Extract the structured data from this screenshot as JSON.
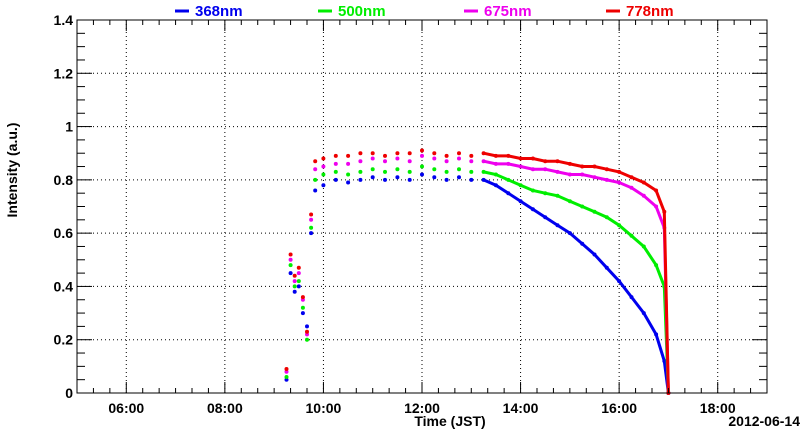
{
  "chart_data": {
    "type": "scatter",
    "title": "",
    "xlabel": "Time (JST)",
    "ylabel": "Intensity (a.u.)",
    "date_label": "2012-06-14",
    "xlim": [
      "05:00",
      "19:00"
    ],
    "ylim": [
      0,
      1.4
    ],
    "grid": true,
    "legend_position": "top",
    "x_ticks": [
      "06:00",
      "08:00",
      "10:00",
      "12:00",
      "14:00",
      "16:00",
      "18:00"
    ],
    "y_ticks": [
      "0",
      "0.2",
      "0.4",
      "0.6",
      "0.8",
      "1",
      "1.2",
      "1.4"
    ],
    "series": [
      {
        "name": "368nm",
        "color": "#0000ee",
        "points": [
          [
            "09:15",
            0.05
          ],
          [
            "09:20",
            0.45
          ],
          [
            "09:25",
            0.38
          ],
          [
            "09:30",
            0.4
          ],
          [
            "09:35",
            0.3
          ],
          [
            "09:40",
            0.25
          ],
          [
            "09:45",
            0.6
          ],
          [
            "09:50",
            0.76
          ],
          [
            "10:00",
            0.78
          ],
          [
            "10:15",
            0.8
          ],
          [
            "10:30",
            0.79
          ],
          [
            "10:45",
            0.8
          ],
          [
            "11:00",
            0.81
          ],
          [
            "11:15",
            0.8
          ],
          [
            "11:30",
            0.81
          ],
          [
            "11:45",
            0.8
          ],
          [
            "12:00",
            0.82
          ],
          [
            "12:15",
            0.81
          ],
          [
            "12:30",
            0.8
          ],
          [
            "12:45",
            0.81
          ],
          [
            "13:00",
            0.8
          ],
          [
            "13:15",
            0.8
          ],
          [
            "13:30",
            0.78
          ],
          [
            "13:45",
            0.75
          ],
          [
            "14:00",
            0.72
          ],
          [
            "14:15",
            0.69
          ],
          [
            "14:30",
            0.66
          ],
          [
            "14:45",
            0.63
          ],
          [
            "15:00",
            0.6
          ],
          [
            "15:15",
            0.56
          ],
          [
            "15:30",
            0.52
          ],
          [
            "15:45",
            0.47
          ],
          [
            "16:00",
            0.42
          ],
          [
            "16:15",
            0.36
          ],
          [
            "16:30",
            0.3
          ],
          [
            "16:45",
            0.22
          ],
          [
            "16:55",
            0.12
          ],
          [
            "17:00",
            0.0
          ]
        ]
      },
      {
        "name": "500nm",
        "color": "#00ee00",
        "points": [
          [
            "09:15",
            0.06
          ],
          [
            "09:20",
            0.48
          ],
          [
            "09:25",
            0.4
          ],
          [
            "09:30",
            0.42
          ],
          [
            "09:35",
            0.32
          ],
          [
            "09:40",
            0.2
          ],
          [
            "09:45",
            0.62
          ],
          [
            "09:50",
            0.8
          ],
          [
            "10:00",
            0.82
          ],
          [
            "10:15",
            0.83
          ],
          [
            "10:30",
            0.82
          ],
          [
            "10:45",
            0.83
          ],
          [
            "11:00",
            0.84
          ],
          [
            "11:15",
            0.83
          ],
          [
            "11:30",
            0.84
          ],
          [
            "11:45",
            0.83
          ],
          [
            "12:00",
            0.85
          ],
          [
            "12:15",
            0.84
          ],
          [
            "12:30",
            0.83
          ],
          [
            "12:45",
            0.84
          ],
          [
            "13:00",
            0.83
          ],
          [
            "13:15",
            0.83
          ],
          [
            "13:30",
            0.82
          ],
          [
            "13:45",
            0.8
          ],
          [
            "14:00",
            0.78
          ],
          [
            "14:15",
            0.76
          ],
          [
            "14:30",
            0.75
          ],
          [
            "14:45",
            0.74
          ],
          [
            "15:00",
            0.72
          ],
          [
            "15:15",
            0.7
          ],
          [
            "15:30",
            0.68
          ],
          [
            "15:45",
            0.66
          ],
          [
            "16:00",
            0.63
          ],
          [
            "16:15",
            0.59
          ],
          [
            "16:30",
            0.55
          ],
          [
            "16:45",
            0.48
          ],
          [
            "16:55",
            0.4
          ],
          [
            "17:00",
            0.0
          ]
        ]
      },
      {
        "name": "675nm",
        "color": "#ee00ee",
        "points": [
          [
            "09:15",
            0.08
          ],
          [
            "09:20",
            0.5
          ],
          [
            "09:25",
            0.42
          ],
          [
            "09:30",
            0.45
          ],
          [
            "09:35",
            0.35
          ],
          [
            "09:40",
            0.22
          ],
          [
            "09:45",
            0.65
          ],
          [
            "09:50",
            0.84
          ],
          [
            "10:00",
            0.85
          ],
          [
            "10:15",
            0.86
          ],
          [
            "10:30",
            0.86
          ],
          [
            "10:45",
            0.87
          ],
          [
            "11:00",
            0.88
          ],
          [
            "11:15",
            0.87
          ],
          [
            "11:30",
            0.88
          ],
          [
            "11:45",
            0.87
          ],
          [
            "12:00",
            0.89
          ],
          [
            "12:15",
            0.88
          ],
          [
            "12:30",
            0.87
          ],
          [
            "12:45",
            0.88
          ],
          [
            "13:00",
            0.87
          ],
          [
            "13:15",
            0.87
          ],
          [
            "13:30",
            0.86
          ],
          [
            "13:45",
            0.86
          ],
          [
            "14:00",
            0.85
          ],
          [
            "14:15",
            0.84
          ],
          [
            "14:30",
            0.84
          ],
          [
            "14:45",
            0.83
          ],
          [
            "15:00",
            0.82
          ],
          [
            "15:15",
            0.82
          ],
          [
            "15:30",
            0.81
          ],
          [
            "15:45",
            0.8
          ],
          [
            "16:00",
            0.79
          ],
          [
            "16:15",
            0.77
          ],
          [
            "16:30",
            0.74
          ],
          [
            "16:45",
            0.7
          ],
          [
            "16:55",
            0.62
          ],
          [
            "17:00",
            0.0
          ]
        ]
      },
      {
        "name": "778nm",
        "color": "#ee0000",
        "points": [
          [
            "09:15",
            0.09
          ],
          [
            "09:20",
            0.52
          ],
          [
            "09:25",
            0.44
          ],
          [
            "09:30",
            0.47
          ],
          [
            "09:35",
            0.36
          ],
          [
            "09:40",
            0.23
          ],
          [
            "09:45",
            0.67
          ],
          [
            "09:50",
            0.87
          ],
          [
            "10:00",
            0.88
          ],
          [
            "10:15",
            0.89
          ],
          [
            "10:30",
            0.89
          ],
          [
            "10:45",
            0.9
          ],
          [
            "11:00",
            0.9
          ],
          [
            "11:15",
            0.89
          ],
          [
            "11:30",
            0.9
          ],
          [
            "11:45",
            0.9
          ],
          [
            "12:00",
            0.91
          ],
          [
            "12:15",
            0.9
          ],
          [
            "12:30",
            0.89
          ],
          [
            "12:45",
            0.9
          ],
          [
            "13:00",
            0.89
          ],
          [
            "13:15",
            0.9
          ],
          [
            "13:30",
            0.89
          ],
          [
            "13:45",
            0.89
          ],
          [
            "14:00",
            0.88
          ],
          [
            "14:15",
            0.88
          ],
          [
            "14:30",
            0.87
          ],
          [
            "14:45",
            0.87
          ],
          [
            "15:00",
            0.86
          ],
          [
            "15:15",
            0.85
          ],
          [
            "15:30",
            0.85
          ],
          [
            "15:45",
            0.84
          ],
          [
            "16:00",
            0.83
          ],
          [
            "16:15",
            0.81
          ],
          [
            "16:30",
            0.79
          ],
          [
            "16:45",
            0.76
          ],
          [
            "16:55",
            0.68
          ],
          [
            "17:00",
            0.0
          ]
        ]
      }
    ]
  }
}
